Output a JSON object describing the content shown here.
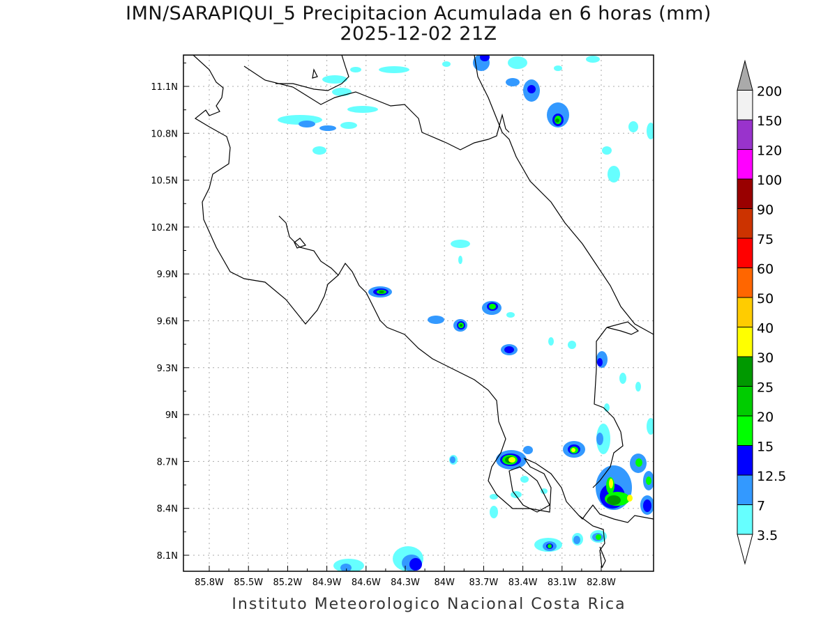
{
  "title": {
    "line1": "IMN/SARAPIQUI_5 Precipitacion Acumulada en 6 horas (mm)",
    "line2": "2025-12-02 21Z"
  },
  "credit": "Instituto Meteorologico Nacional Costa Rica",
  "axes": {
    "lon_ticks": [
      "85.8W",
      "85.5W",
      "85.2W",
      "84.9W",
      "84.6W",
      "84.3W",
      "84W",
      "83.7W",
      "83.4W",
      "83.1W",
      "82.8W"
    ],
    "lat_ticks": [
      "11.1N",
      "10.8N",
      "10.5N",
      "10.2N",
      "9.9N",
      "9.6N",
      "9.3N",
      "9N",
      "8.7N",
      "8.4N",
      "8.1N"
    ],
    "lon_range": [
      -86.1,
      -83.1
    ],
    "lat_range": [
      8.0,
      11.3
    ]
  },
  "colorbar": {
    "levels": [
      "3.5",
      "7",
      "12.5",
      "15",
      "20",
      "25",
      "30",
      "40",
      "50",
      "60",
      "75",
      "90",
      "100",
      "120",
      "150",
      "200"
    ],
    "colors": [
      "#66ffff",
      "#3399ff",
      "#0000ff",
      "#00ff00",
      "#00cc00",
      "#009900",
      "#ffff00",
      "#ffcc00",
      "#ff6600",
      "#ff0000",
      "#cc3300",
      "#990000",
      "#ff00ff",
      "#9933cc",
      "#f2f2f2",
      "#aaaaaa"
    ]
  },
  "map_data": {
    "cells": [
      {
        "lon": -84.58,
        "lat": 9.79,
        "lvl": 3
      },
      {
        "lon": -83.95,
        "lat": 9.57,
        "lvl": 3
      },
      {
        "lon": -83.69,
        "lat": 9.69,
        "lvl": 3
      },
      {
        "lon": -83.56,
        "lat": 9.43,
        "lvl": 2
      },
      {
        "lon": -83.68,
        "lat": 8.73,
        "lvl": 5
      },
      {
        "lon": -83.1,
        "lat": 8.77,
        "lvl": 5
      },
      {
        "lon": -82.8,
        "lat": 8.51,
        "lvl": 6
      },
      {
        "lon": -82.75,
        "lat": 8.45,
        "lvl": 5
      },
      {
        "lon": -83.4,
        "lat": 11.08,
        "lvl": 3
      },
      {
        "lon": -83.2,
        "lat": 10.91,
        "lvl": 3
      },
      {
        "lon": -84.28,
        "lat": 8.06,
        "lvl": 2
      },
      {
        "lon": -82.88,
        "lat": 8.22,
        "lvl": 3
      },
      {
        "lon": -83.27,
        "lat": 8.18,
        "lvl": 3
      }
    ]
  }
}
